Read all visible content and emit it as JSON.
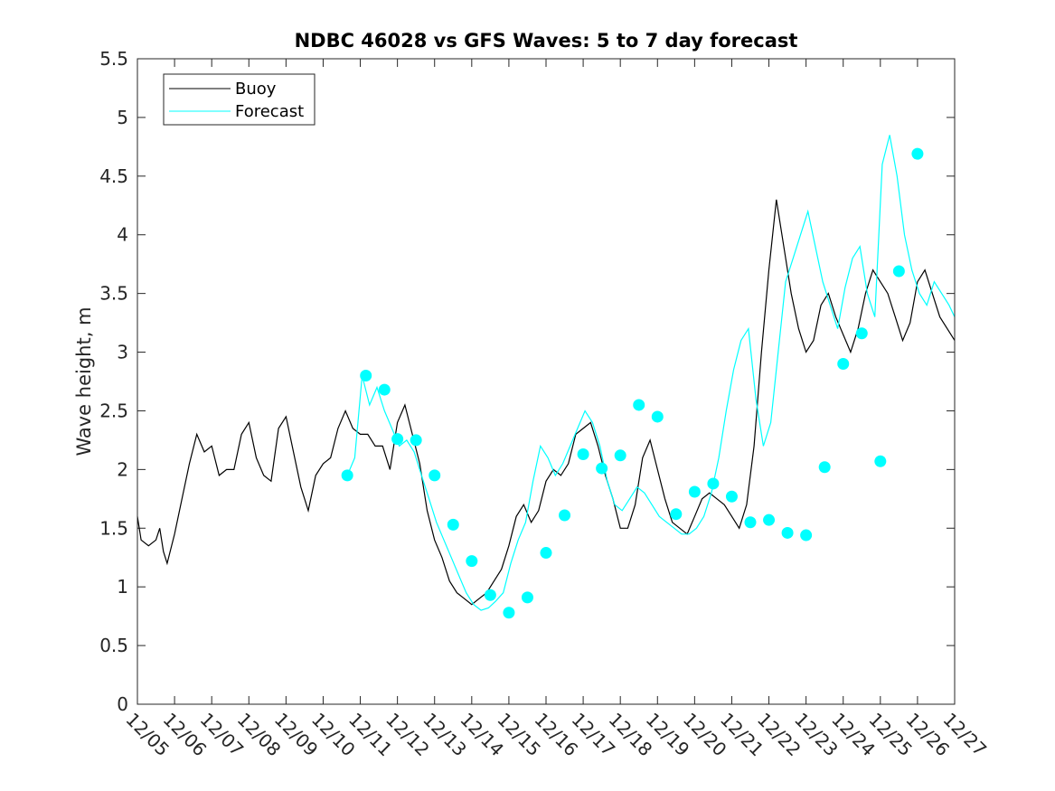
{
  "chart_data": {
    "type": "line",
    "title": "NDBC 46028 vs GFS Waves: 5 to 7 day forecast",
    "xlabel": "",
    "ylabel": "Wave height, m",
    "x_unit": "days since 12/05",
    "xlim": [
      0,
      22
    ],
    "ylim": [
      0,
      5.5
    ],
    "yticks": [
      0,
      0.5,
      1,
      1.5,
      2,
      2.5,
      3,
      3.5,
      4,
      4.5,
      5,
      5.5
    ],
    "ytick_labels": [
      "0",
      "0.5",
      "1",
      "1.5",
      "2",
      "2.5",
      "3",
      "3.5",
      "4",
      "4.5",
      "5",
      "5.5"
    ],
    "xticks": [
      0,
      1,
      2,
      3,
      4,
      5,
      6,
      7,
      8,
      9,
      10,
      11,
      12,
      13,
      14,
      15,
      16,
      17,
      18,
      19,
      20,
      21,
      22
    ],
    "xtick_labels": [
      "12/05",
      "12/06",
      "12/07",
      "12/08",
      "12/09",
      "12/10",
      "12/11",
      "12/12",
      "12/13",
      "12/14",
      "12/15",
      "12/16",
      "12/17",
      "12/18",
      "12/19",
      "12/20",
      "12/21",
      "12/22",
      "12/23",
      "12/24",
      "12/25",
      "12/26",
      "12/27"
    ],
    "legend": {
      "location": "top-left",
      "entries": [
        {
          "label": "Buoy",
          "color": "#000000"
        },
        {
          "label": "Forecast",
          "color": "#00ffff"
        }
      ]
    },
    "colors": {
      "buoy": "#000000",
      "forecast": "#00ffff",
      "markers": "#00ffff"
    },
    "series": [
      {
        "name": "Buoy",
        "color": "#000000",
        "x": [
          0,
          0.1,
          0.3,
          0.5,
          0.6,
          0.7,
          0.8,
          1.0,
          1.2,
          1.4,
          1.6,
          1.8,
          2.0,
          2.2,
          2.4,
          2.6,
          2.8,
          3.0,
          3.2,
          3.4,
          3.6,
          3.8,
          4.0,
          4.2,
          4.4,
          4.6,
          4.8,
          5.0,
          5.2,
          5.4,
          5.6,
          5.8,
          6.0,
          6.2,
          6.4,
          6.6,
          6.8,
          7.0,
          7.2,
          7.4,
          7.6,
          7.8,
          8.0,
          8.2,
          8.4,
          8.6,
          8.8,
          9.0,
          9.2,
          9.4,
          9.6,
          9.8,
          10.0,
          10.2,
          10.4,
          10.6,
          10.8,
          11.0,
          11.2,
          11.4,
          11.6,
          11.8,
          12.0,
          12.2,
          12.4,
          12.6,
          12.8,
          13.0,
          13.2,
          13.4,
          13.6,
          13.8,
          14.0,
          14.2,
          14.4,
          14.6,
          14.8,
          15.0,
          15.2,
          15.4,
          15.6,
          15.8,
          16.0,
          16.2,
          16.4,
          16.6,
          16.8,
          17.0,
          17.2,
          17.4,
          17.6,
          17.8,
          18.0,
          18.2,
          18.4,
          18.6,
          18.8,
          19.0,
          19.2,
          19.4,
          19.6,
          19.8,
          20.0,
          20.2,
          20.4,
          20.6,
          20.8,
          21.0,
          21.2,
          21.4,
          21.6,
          21.8,
          22.0
        ],
        "values": [
          1.6,
          1.4,
          1.35,
          1.4,
          1.5,
          1.3,
          1.2,
          1.45,
          1.75,
          2.05,
          2.3,
          2.15,
          2.2,
          1.95,
          2.0,
          2.0,
          2.3,
          2.4,
          2.1,
          1.95,
          1.9,
          2.35,
          2.45,
          2.15,
          1.85,
          1.65,
          1.95,
          2.05,
          2.1,
          2.35,
          2.5,
          2.35,
          2.3,
          2.3,
          2.2,
          2.2,
          2.0,
          2.4,
          2.55,
          2.3,
          2.05,
          1.65,
          1.4,
          1.25,
          1.05,
          0.95,
          0.9,
          0.85,
          0.9,
          0.95,
          1.05,
          1.15,
          1.35,
          1.6,
          1.7,
          1.55,
          1.65,
          1.9,
          2.0,
          1.95,
          2.05,
          2.3,
          2.35,
          2.4,
          2.2,
          1.95,
          1.75,
          1.5,
          1.5,
          1.7,
          2.1,
          2.25,
          2.0,
          1.75,
          1.55,
          1.5,
          1.45,
          1.6,
          1.75,
          1.8,
          1.75,
          1.7,
          1.6,
          1.5,
          1.7,
          2.2,
          3.0,
          3.7,
          4.3,
          3.9,
          3.5,
          3.2,
          3.0,
          3.1,
          3.4,
          3.5,
          3.3,
          3.15,
          3.0,
          3.2,
          3.5,
          3.7,
          3.6,
          3.5,
          3.3,
          3.1,
          3.25,
          3.6,
          3.7,
          3.5,
          3.3,
          3.2,
          3.1
        ]
      },
      {
        "name": "Forecast",
        "color": "#00ffff",
        "x": [
          5.65,
          5.85,
          6.05,
          6.25,
          6.45,
          6.65,
          6.85,
          7.05,
          7.25,
          7.45,
          7.65,
          7.85,
          8.05,
          8.25,
          8.45,
          8.65,
          8.85,
          9.05,
          9.25,
          9.45,
          9.65,
          9.85,
          10.05,
          10.25,
          10.45,
          10.65,
          10.85,
          11.05,
          11.25,
          11.45,
          11.65,
          11.85,
          12.05,
          12.25,
          12.45,
          12.65,
          12.85,
          13.05,
          13.25,
          13.45,
          13.65,
          13.85,
          14.05,
          14.25,
          14.45,
          14.65,
          14.85,
          15.05,
          15.25,
          15.45,
          15.65,
          15.85,
          16.05,
          16.25,
          16.45,
          16.65,
          16.85,
          17.05,
          17.25,
          17.45,
          17.65,
          17.85,
          18.05,
          18.25,
          18.45,
          18.65,
          18.85,
          19.05,
          19.25,
          19.45,
          19.65,
          19.85,
          20.05,
          20.25,
          20.45,
          20.65,
          20.85,
          21.05,
          21.25,
          21.45,
          21.65,
          21.85,
          22.0
        ],
        "values": [
          1.95,
          2.1,
          2.8,
          2.55,
          2.7,
          2.5,
          2.35,
          2.2,
          2.25,
          2.15,
          1.95,
          1.75,
          1.55,
          1.4,
          1.25,
          1.1,
          0.95,
          0.85,
          0.8,
          0.82,
          0.88,
          0.95,
          1.2,
          1.4,
          1.55,
          1.9,
          2.2,
          2.1,
          1.95,
          2.05,
          2.2,
          2.35,
          2.5,
          2.4,
          2.2,
          1.9,
          1.7,
          1.65,
          1.75,
          1.85,
          1.8,
          1.7,
          1.6,
          1.55,
          1.5,
          1.45,
          1.45,
          1.5,
          1.6,
          1.8,
          2.1,
          2.5,
          2.85,
          3.1,
          3.2,
          2.6,
          2.2,
          2.4,
          3.0,
          3.6,
          3.8,
          4.0,
          4.2,
          3.9,
          3.6,
          3.4,
          3.2,
          3.55,
          3.8,
          3.9,
          3.5,
          3.3,
          4.6,
          4.85,
          4.5,
          4.0,
          3.7,
          3.5,
          3.4,
          3.6,
          3.5,
          3.4,
          3.3
        ]
      }
    ],
    "markers": {
      "name": "Forecast day markers",
      "color": "#00ffff",
      "x": [
        5.65,
        6.15,
        6.65,
        7.0,
        7.5,
        8.0,
        8.5,
        9.0,
        9.5,
        10.0,
        10.5,
        11.0,
        11.5,
        12.0,
        12.5,
        13.0,
        13.5,
        14.0,
        14.5,
        15.0,
        15.5,
        16.0,
        16.5,
        17.0,
        17.5,
        18.0,
        18.5,
        19.0,
        19.5,
        20.0,
        20.5,
        21.0
      ],
      "values": [
        1.95,
        2.8,
        2.68,
        2.26,
        2.25,
        1.95,
        1.53,
        1.22,
        0.93,
        0.78,
        0.91,
        1.29,
        1.61,
        2.13,
        2.01,
        2.12,
        2.55,
        2.45,
        1.62,
        1.81,
        1.88,
        1.77,
        1.55,
        1.57,
        1.46,
        1.44,
        2.02,
        2.9,
        3.16,
        2.07,
        3.69,
        4.69
      ]
    }
  }
}
